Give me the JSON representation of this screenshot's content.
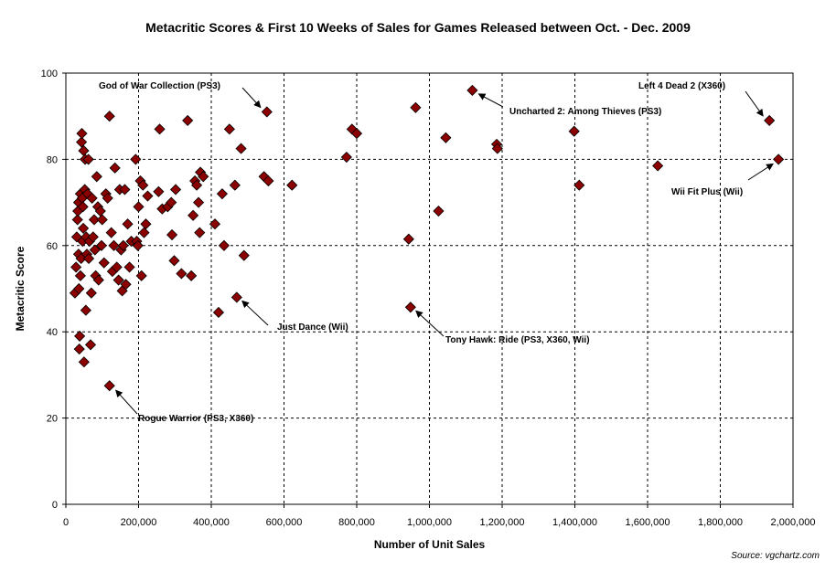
{
  "chart_data": {
    "type": "scatter",
    "title": "Metacritic Scores & First 10 Weeks of Sales for Games Released between Oct. - Dec. 2009",
    "xlabel": "Number of Unit Sales",
    "ylabel": "Metacritic Score",
    "xlim": [
      0,
      2000000
    ],
    "ylim": [
      0,
      100
    ],
    "x_ticks": [
      "0",
      "200,000",
      "400,000",
      "600,000",
      "800,000",
      "1,000,000",
      "1,200,000",
      "1,400,000",
      "1,600,000",
      "1,800,000",
      "2,000,000"
    ],
    "y_ticks": [
      "0",
      "20",
      "40",
      "60",
      "80",
      "100"
    ],
    "grid": "dashed",
    "marker": "diamond",
    "marker_color": "#8B0000",
    "points": [
      {
        "x": 25000,
        "y": 49
      },
      {
        "x": 28000,
        "y": 55
      },
      {
        "x": 30000,
        "y": 62
      },
      {
        "x": 32000,
        "y": 66
      },
      {
        "x": 33000,
        "y": 68
      },
      {
        "x": 35000,
        "y": 70
      },
      {
        "x": 35000,
        "y": 58
      },
      {
        "x": 36000,
        "y": 50
      },
      {
        "x": 37000,
        "y": 36
      },
      {
        "x": 38000,
        "y": 39
      },
      {
        "x": 40000,
        "y": 72
      },
      {
        "x": 40000,
        "y": 53
      },
      {
        "x": 42000,
        "y": 57
      },
      {
        "x": 43000,
        "y": 84
      },
      {
        "x": 44000,
        "y": 86
      },
      {
        "x": 45000,
        "y": 71
      },
      {
        "x": 46000,
        "y": 61
      },
      {
        "x": 47000,
        "y": 69
      },
      {
        "x": 48000,
        "y": 64
      },
      {
        "x": 49000,
        "y": 82
      },
      {
        "x": 50000,
        "y": 33
      },
      {
        "x": 52000,
        "y": 73
      },
      {
        "x": 53000,
        "y": 80
      },
      {
        "x": 55000,
        "y": 45
      },
      {
        "x": 56000,
        "y": 62
      },
      {
        "x": 58000,
        "y": 58
      },
      {
        "x": 60000,
        "y": 72
      },
      {
        "x": 62000,
        "y": 80
      },
      {
        "x": 63000,
        "y": 57
      },
      {
        "x": 65000,
        "y": 61
      },
      {
        "x": 68000,
        "y": 37
      },
      {
        "x": 70000,
        "y": 49
      },
      {
        "x": 72000,
        "y": 71
      },
      {
        "x": 75000,
        "y": 62
      },
      {
        "x": 78000,
        "y": 66
      },
      {
        "x": 80000,
        "y": 59
      },
      {
        "x": 82000,
        "y": 53
      },
      {
        "x": 85000,
        "y": 76
      },
      {
        "x": 88000,
        "y": 69
      },
      {
        "x": 90000,
        "y": 52
      },
      {
        "x": 95000,
        "y": 68
      },
      {
        "x": 98000,
        "y": 60
      },
      {
        "x": 100000,
        "y": 66
      },
      {
        "x": 105000,
        "y": 56
      },
      {
        "x": 110000,
        "y": 72
      },
      {
        "x": 115000,
        "y": 71
      },
      {
        "x": 120000,
        "y": 90
      },
      {
        "x": 120000,
        "y": 27.5
      },
      {
        "x": 125000,
        "y": 63
      },
      {
        "x": 128000,
        "y": 54
      },
      {
        "x": 132000,
        "y": 60
      },
      {
        "x": 135000,
        "y": 78
      },
      {
        "x": 140000,
        "y": 55
      },
      {
        "x": 145000,
        "y": 52
      },
      {
        "x": 148000,
        "y": 73
      },
      {
        "x": 152000,
        "y": 59
      },
      {
        "x": 155000,
        "y": 49.5
      },
      {
        "x": 158000,
        "y": 60
      },
      {
        "x": 162000,
        "y": 73
      },
      {
        "x": 165000,
        "y": 51
      },
      {
        "x": 170000,
        "y": 65
      },
      {
        "x": 175000,
        "y": 55
      },
      {
        "x": 180000,
        "y": 61
      },
      {
        "x": 192000,
        "y": 80
      },
      {
        "x": 195000,
        "y": 61
      },
      {
        "x": 198000,
        "y": 60
      },
      {
        "x": 200000,
        "y": 69
      },
      {
        "x": 205000,
        "y": 75
      },
      {
        "x": 208000,
        "y": 53
      },
      {
        "x": 212000,
        "y": 74
      },
      {
        "x": 215000,
        "y": 63
      },
      {
        "x": 220000,
        "y": 65
      },
      {
        "x": 225000,
        "y": 71.5
      },
      {
        "x": 255000,
        "y": 72.5
      },
      {
        "x": 258000,
        "y": 87
      },
      {
        "x": 265000,
        "y": 68.5
      },
      {
        "x": 280000,
        "y": 69
      },
      {
        "x": 290000,
        "y": 70
      },
      {
        "x": 292000,
        "y": 62.5
      },
      {
        "x": 298000,
        "y": 56.5
      },
      {
        "x": 302000,
        "y": 73
      },
      {
        "x": 318000,
        "y": 53.5
      },
      {
        "x": 335000,
        "y": 89
      },
      {
        "x": 345000,
        "y": 53
      },
      {
        "x": 350000,
        "y": 67
      },
      {
        "x": 355000,
        "y": 75
      },
      {
        "x": 360000,
        "y": 74
      },
      {
        "x": 365000,
        "y": 70
      },
      {
        "x": 368000,
        "y": 63
      },
      {
        "x": 370000,
        "y": 77
      },
      {
        "x": 378000,
        "y": 76
      },
      {
        "x": 410000,
        "y": 65
      },
      {
        "x": 420000,
        "y": 44.5
      },
      {
        "x": 430000,
        "y": 72
      },
      {
        "x": 435000,
        "y": 60
      },
      {
        "x": 450000,
        "y": 87
      },
      {
        "x": 465000,
        "y": 74
      },
      {
        "x": 470000,
        "y": 48
      },
      {
        "x": 482000,
        "y": 82.5
      },
      {
        "x": 490000,
        "y": 57.7
      },
      {
        "x": 545000,
        "y": 76
      },
      {
        "x": 553000,
        "y": 91
      },
      {
        "x": 557000,
        "y": 75
      },
      {
        "x": 622000,
        "y": 74
      },
      {
        "x": 772000,
        "y": 80.5
      },
      {
        "x": 787000,
        "y": 87
      },
      {
        "x": 800000,
        "y": 86
      },
      {
        "x": 943000,
        "y": 61.5
      },
      {
        "x": 948000,
        "y": 45.7
      },
      {
        "x": 962000,
        "y": 92
      },
      {
        "x": 1025000,
        "y": 68
      },
      {
        "x": 1045000,
        "y": 85
      },
      {
        "x": 1118000,
        "y": 96
      },
      {
        "x": 1185000,
        "y": 83.5
      },
      {
        "x": 1187000,
        "y": 82.5
      },
      {
        "x": 1398000,
        "y": 86.5
      },
      {
        "x": 1412000,
        "y": 74
      },
      {
        "x": 1628000,
        "y": 78.5
      },
      {
        "x": 1935000,
        "y": 89
      },
      {
        "x": 1960000,
        "y": 80
      }
    ],
    "annotations": [
      {
        "text": "God of War Collection (PS3)",
        "point": [
          553000,
          91
        ]
      },
      {
        "text": "Uncharted 2: Among Thieves (PS3)",
        "point": [
          1118000,
          96
        ]
      },
      {
        "text": "Left 4 Dead 2 (X360)",
        "point": [
          1935000,
          89
        ]
      },
      {
        "text": "Wii Fit Plus (Wii)",
        "point": [
          1960000,
          80
        ]
      },
      {
        "text": "Just Dance (Wii)",
        "point": [
          470000,
          48
        ]
      },
      {
        "text": "Tony Hawk: Ride (PS3, X360, Wii)",
        "point": [
          948000,
          45.7
        ]
      },
      {
        "text": "Rogue Warrior (PS3, X360)",
        "point": [
          120000,
          27.5
        ]
      }
    ]
  },
  "source_note": "Source: vgchartz.com"
}
